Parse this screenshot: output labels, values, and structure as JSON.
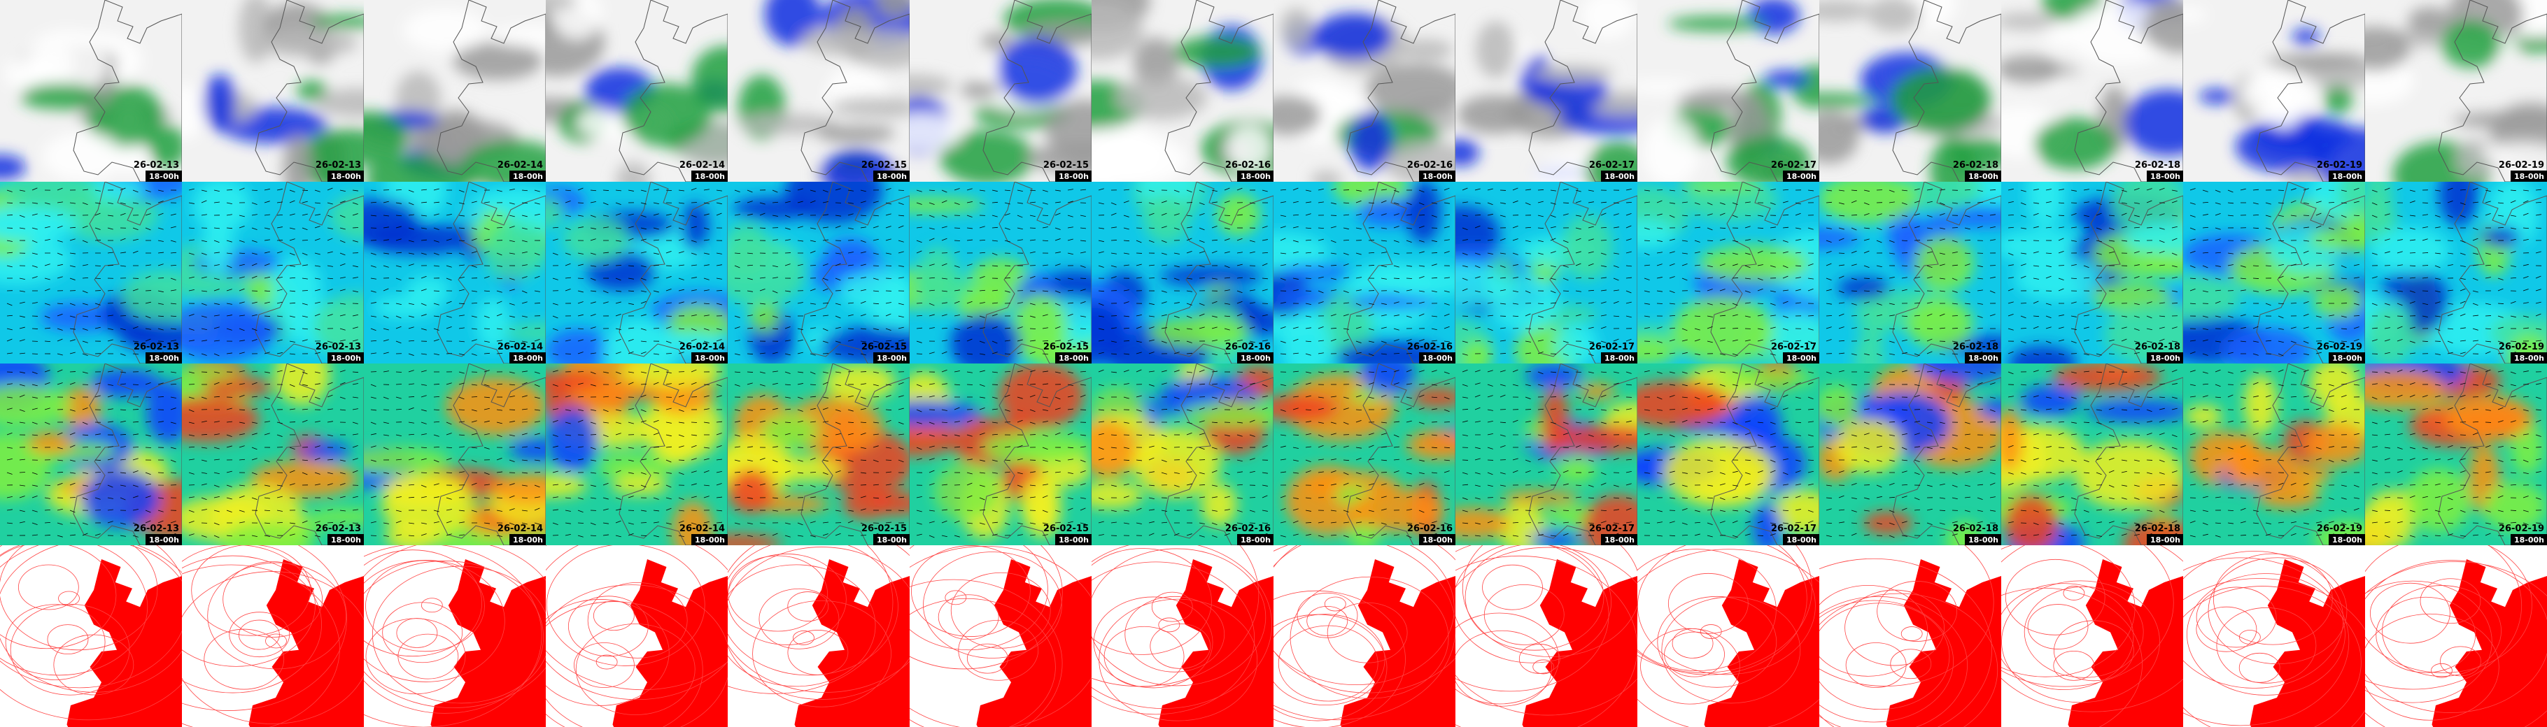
{
  "panels": {
    "dates": [
      "26-02-13",
      "26-02-13",
      "26-02-14",
      "26-02-14",
      "26-02-15",
      "26-02-15",
      "26-02-16",
      "26-02-16",
      "26-02-17",
      "26-02-17",
      "26-02-18",
      "26-02-18",
      "26-02-19",
      "26-02-19"
    ],
    "times": [
      "18-00h",
      "18-00h",
      "18-00h",
      "18-00h",
      "18-00h",
      "18-00h",
      "18-00h",
      "18-00h",
      "18-00h",
      "18-00h",
      "18-00h",
      "18-00h",
      "18-00h",
      "18-00h"
    ]
  }
}
